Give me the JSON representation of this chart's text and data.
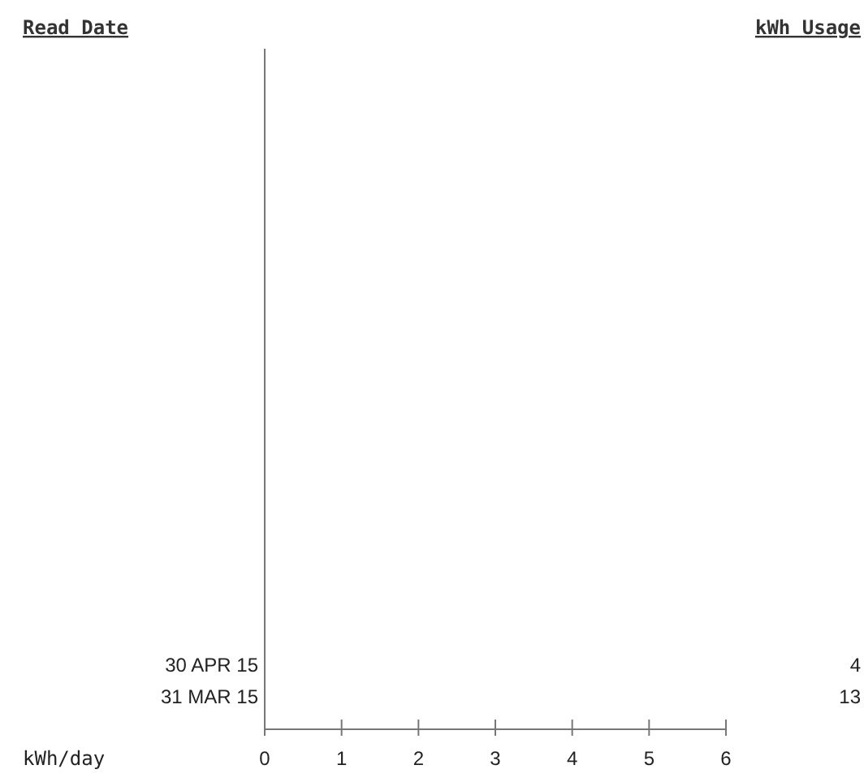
{
  "chart_data": {
    "type": "bar",
    "orientation": "horizontal",
    "ylabel": "Read Date",
    "y2label": "kWh Usage",
    "xlabel": "kWh/day",
    "categories": [
      null,
      null,
      null,
      null,
      null,
      null,
      null,
      null,
      null,
      null,
      null,
      null,
      null,
      null,
      null,
      null,
      null,
      null,
      "30 APR 15",
      "31 MAR 15"
    ],
    "values": [
      null,
      null,
      null,
      null,
      null,
      null,
      null,
      null,
      null,
      null,
      null,
      null,
      null,
      null,
      null,
      null,
      null,
      null,
      null,
      null
    ],
    "xlim": [
      0,
      6
    ],
    "xticks": [
      0,
      1,
      2,
      3,
      4,
      5,
      6
    ],
    "annotations": [
      "4",
      "13"
    ]
  }
}
